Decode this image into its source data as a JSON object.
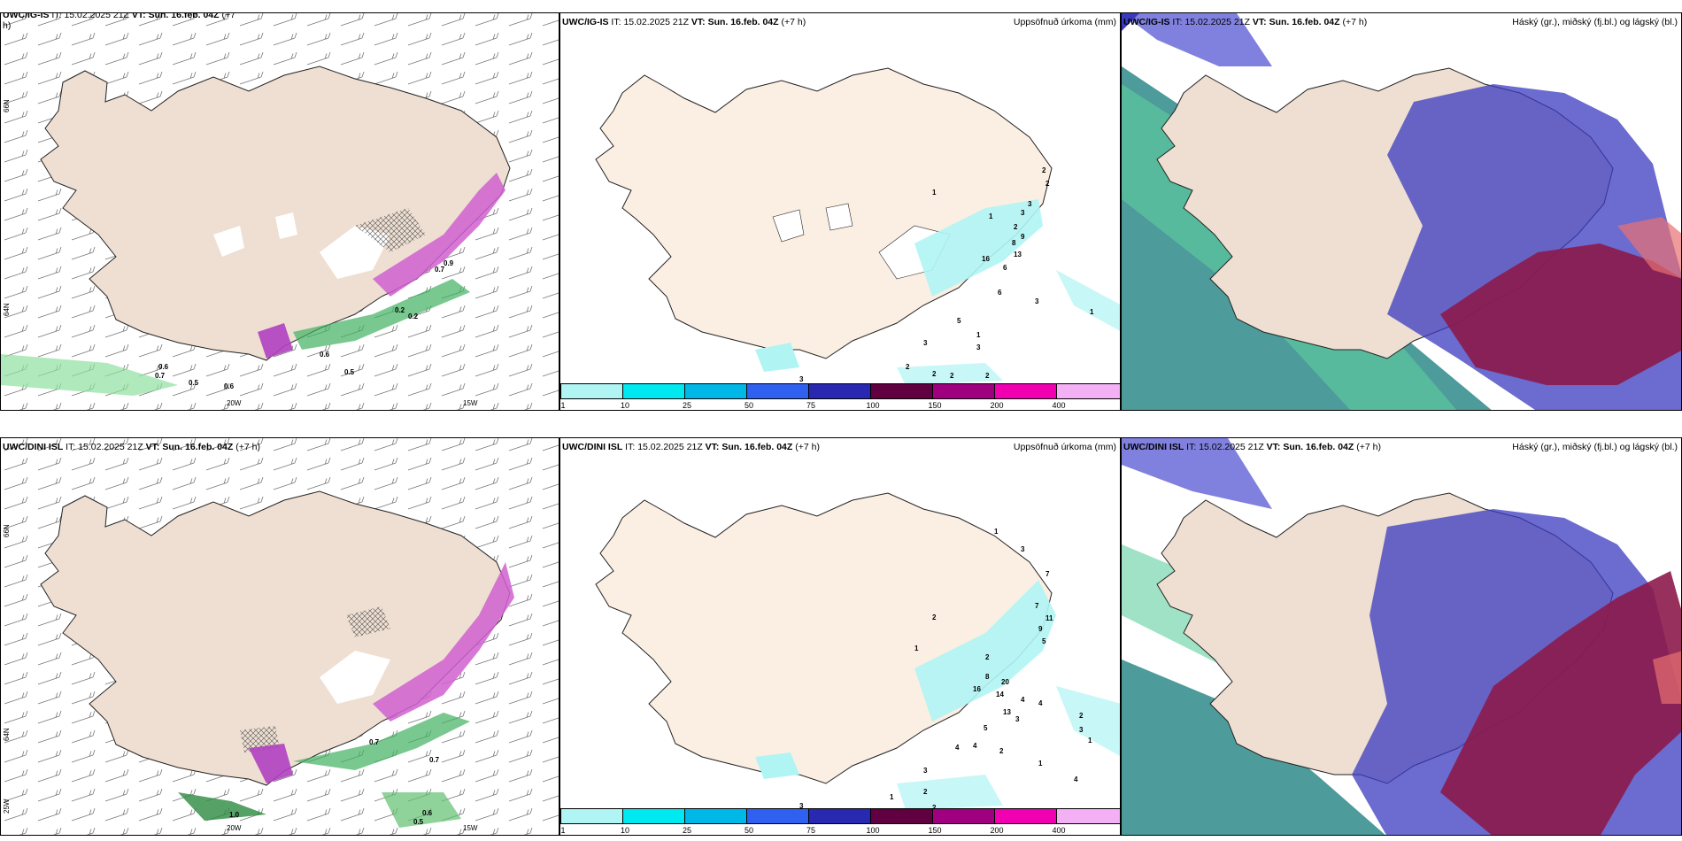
{
  "panels": {
    "tl": {
      "model": "UWC/IG-IS",
      "it_label": "IT:",
      "it": "15.02.2025 21Z",
      "vt_label": "VT:",
      "vt": "Sun. 16.feb. 04Z",
      "lead": "(+7",
      "lead2": "h)"
    },
    "tm": {
      "model": "UWC/IG-IS",
      "it_label": "IT:",
      "it": "15.02.2025 21Z",
      "vt_label": "VT:",
      "vt": "Sun. 16.feb. 04Z",
      "lead": "(+7 h)",
      "right": "Uppsöfnuð úrkoma (mm)"
    },
    "tr": {
      "model": "UWC/IG-IS",
      "it_label": "IT:",
      "it": "15.02.2025 21Z",
      "vt_label": "VT:",
      "vt": "Sun. 16.feb. 04Z",
      "lead": "(+7 h)",
      "right": "Háský (gr.), miðský (fj.bl.) og lágský (bl.)"
    },
    "bl": {
      "model": "UWC/DINI ISL",
      "it_label": "IT:",
      "it": "15.02.2025 21Z",
      "vt_label": "VT:",
      "vt": "Sun. 16.feb. 04Z",
      "lead": "(+7 h)"
    },
    "bm": {
      "model": "UWC/DINI ISL",
      "it_label": "IT:",
      "it": "15.02.2025 21Z",
      "vt_label": "VT:",
      "vt": "Sun. 16.feb. 04Z",
      "lead": "(+7 h)",
      "right": "Uppsöfnuð úrkoma (mm)"
    },
    "br": {
      "model": "UWC/DINI ISL",
      "it_label": "IT:",
      "it": "15.02.2025 21Z",
      "vt_label": "VT:",
      "vt": "Sun. 16.feb. 04Z",
      "lead": "(+7 h)",
      "right": "Háský (gr.), miðský (fj.bl.) og lágský (bl.)"
    }
  },
  "axes": {
    "lat66": "66N",
    "lat64": "64N",
    "lon25": "25W",
    "lon20": "20W",
    "lon15": "15W"
  },
  "scale": {
    "ticks": [
      "1",
      "10",
      "25",
      "50",
      "75",
      "100",
      "150",
      "200",
      "400"
    ],
    "colors": [
      "#b0f4f4",
      "#00e8f0",
      "#00b8e8",
      "#3060f0",
      "#2828b0",
      "#600040",
      "#a00080",
      "#f000b0",
      "#f4b0f4"
    ]
  },
  "left_labels_top": [
    "0.6",
    "0.7",
    "0.5",
    "0.6",
    "0.5",
    "0.6",
    "0.9",
    "0.7",
    "0.2",
    "0.2"
  ],
  "left_labels_bot": [
    "1.0",
    "0.6",
    "0.5",
    "0.7",
    "0.7"
  ],
  "precip_top": [
    "1",
    "2",
    "2",
    "3",
    "3",
    "1",
    "2",
    "9",
    "8",
    "13",
    "16",
    "6",
    "6",
    "3",
    "5",
    "1",
    "1",
    "3",
    "3",
    "2",
    "2",
    "2",
    "2",
    "3"
  ],
  "precip_bot": [
    "1",
    "3",
    "7",
    "2",
    "7",
    "11",
    "9",
    "5",
    "1",
    "2",
    "8",
    "16",
    "20",
    "14",
    "4",
    "4",
    "13",
    "3",
    "5",
    "2",
    "3",
    "1",
    "4",
    "4",
    "2",
    "3",
    "1",
    "2",
    "4",
    "1",
    "3",
    "2"
  ]
}
